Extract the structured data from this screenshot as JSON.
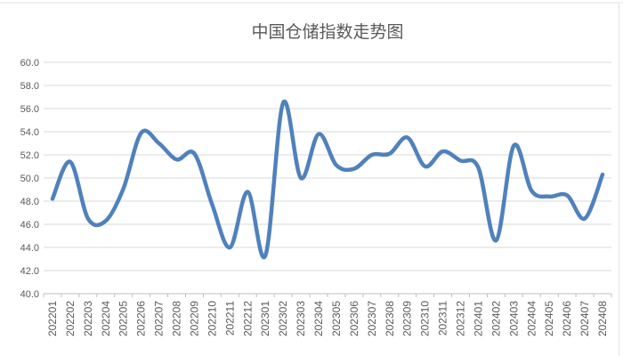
{
  "chart_data": {
    "type": "line",
    "title": "中国仓储指数走势图",
    "categories": [
      "202201",
      "202202",
      "202203",
      "202204",
      "202205",
      "202206",
      "202207",
      "202208",
      "202209",
      "202210",
      "202211",
      "202212",
      "202301",
      "202302",
      "202303",
      "202304",
      "202305",
      "202306",
      "202307",
      "202308",
      "202309",
      "202310",
      "202311",
      "202312",
      "202401",
      "202402",
      "202403",
      "202404",
      "202405",
      "202406",
      "202407",
      "202408"
    ],
    "values": [
      48.2,
      51.4,
      46.5,
      46.3,
      49.1,
      53.9,
      53.0,
      51.6,
      52.1,
      47.7,
      44.0,
      48.8,
      43.3,
      56.5,
      50.0,
      53.8,
      51.1,
      50.8,
      52.0,
      52.1,
      53.5,
      51.0,
      52.3,
      51.5,
      50.9,
      44.6,
      52.8,
      48.9,
      48.4,
      48.5,
      46.5,
      50.3
    ],
    "ylim": [
      40.0,
      60.0
    ],
    "ytick_step": 2.0,
    "ytick_labels": [
      "60.0",
      "58.0",
      "56.0",
      "54.0",
      "52.0",
      "50.0",
      "48.0",
      "46.0",
      "44.0",
      "42.0",
      "40.0"
    ],
    "xlabel": "",
    "ylabel": "",
    "grid": true,
    "legend": "none",
    "smooth": true,
    "colors": {
      "line": "#4F81BD",
      "grid": "#D9D9D9",
      "axis": "#BFBFBF",
      "tick_label": "#595959",
      "title": "#595959",
      "background": "#FFFFFF"
    }
  }
}
